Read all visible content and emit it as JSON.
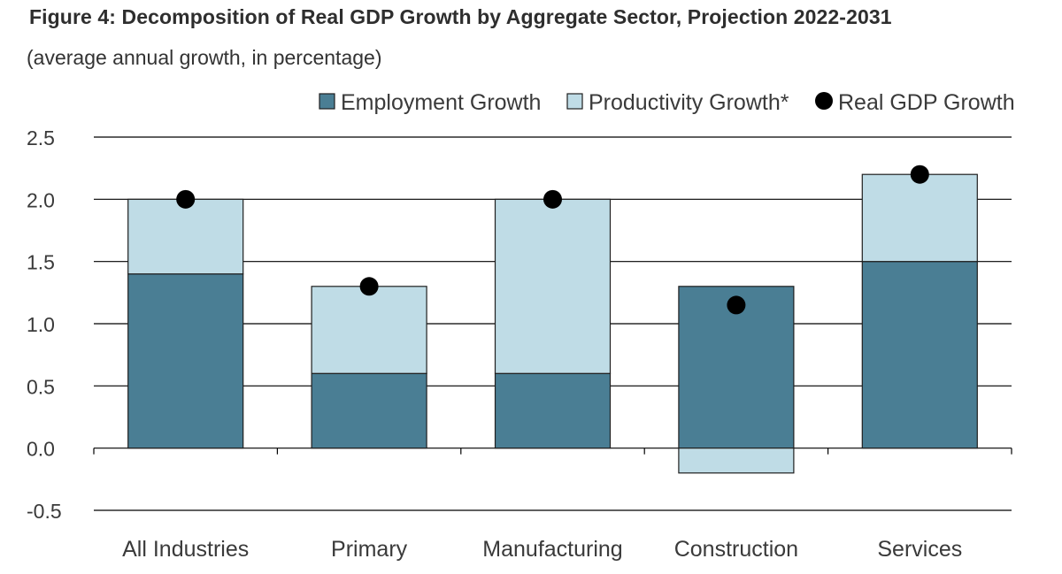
{
  "title": "Figure 4: Decomposition of Real GDP Growth by Aggregate Sector, Projection 2022-2031",
  "subtitle": "(average annual growth, in percentage)",
  "colors": {
    "employment": "#4a7e94",
    "productivity": "#bfdce6",
    "gdp": "#000000",
    "grid": "#000000",
    "text": "#3a3a3a"
  },
  "chart_data": {
    "type": "bar",
    "stacked": true,
    "title": "Figure 4: Decomposition of Real GDP Growth by Aggregate Sector, Projection 2022-2031",
    "subtitle": "(average annual growth, in percentage)",
    "xlabel": "",
    "ylabel": "",
    "ylim": [
      -0.5,
      2.5
    ],
    "yticks": [
      "2.5",
      "2.0",
      "1.5",
      "1.0",
      "0.5",
      "0.0",
      "-0.5"
    ],
    "ytick_values": [
      2.5,
      2.0,
      1.5,
      1.0,
      0.5,
      0.0,
      -0.5
    ],
    "grid": true,
    "legend_position": "top-right",
    "categories": [
      "All Industries",
      "Primary",
      "Manufacturing",
      "Construction",
      "Services"
    ],
    "series": [
      {
        "name": "Employment Growth",
        "kind": "bar",
        "values": [
          1.4,
          0.6,
          0.6,
          1.3,
          1.5
        ]
      },
      {
        "name": "Productivity Growth*",
        "kind": "bar",
        "values": [
          0.6,
          0.7,
          1.4,
          -0.2,
          0.7
        ]
      },
      {
        "name": "Real GDP Growth",
        "kind": "marker",
        "values": [
          2.0,
          1.3,
          2.0,
          1.15,
          2.2
        ]
      }
    ]
  }
}
